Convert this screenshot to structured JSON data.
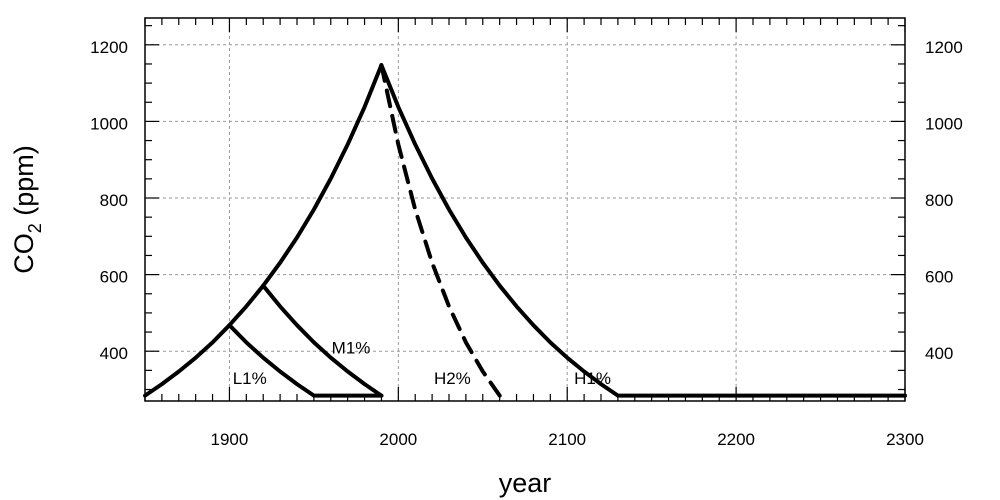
{
  "chart_data": {
    "type": "line",
    "title": "",
    "xlabel": "year",
    "ylabel_main": "CO",
    "ylabel_sub": "2",
    "ylabel_unit": " (ppm)",
    "xlim": [
      1850,
      2300
    ],
    "ylim": [
      270,
      1270
    ],
    "x_ticks": [
      1900,
      2000,
      2100,
      2200,
      2300
    ],
    "x_minor_step": 10,
    "y_ticks": [
      400,
      600,
      800,
      1000,
      1200
    ],
    "y_minor_step": 50,
    "grid": true,
    "mirror_y_axis_right": true,
    "series": [
      {
        "label": "H1%",
        "style": "solid",
        "label_at": [
          2115,
          330
        ],
        "points": [
          [
            1850,
            284
          ],
          [
            1860,
            314
          ],
          [
            1870,
            347
          ],
          [
            1880,
            383
          ],
          [
            1890,
            423
          ],
          [
            1900,
            468
          ],
          [
            1910,
            517
          ],
          [
            1920,
            571
          ],
          [
            1930,
            631
          ],
          [
            1940,
            697
          ],
          [
            1950,
            770
          ],
          [
            1960,
            851
          ],
          [
            1970,
            940
          ],
          [
            1980,
            1038
          ],
          [
            1990,
            1147
          ],
          [
            2000,
            1038
          ],
          [
            2010,
            940
          ],
          [
            2020,
            851
          ],
          [
            2030,
            770
          ],
          [
            2040,
            697
          ],
          [
            2050,
            631
          ],
          [
            2060,
            571
          ],
          [
            2070,
            517
          ],
          [
            2080,
            468
          ],
          [
            2090,
            423
          ],
          [
            2100,
            383
          ],
          [
            2110,
            347
          ],
          [
            2120,
            314
          ],
          [
            2130,
            284
          ],
          [
            2200,
            284
          ],
          [
            2300,
            284
          ]
        ]
      },
      {
        "label": "H2%",
        "style": "dashed",
        "label_at": [
          2032,
          330
        ],
        "points": [
          [
            1990,
            1147
          ],
          [
            2000,
            940
          ],
          [
            2010,
            770
          ],
          [
            2020,
            631
          ],
          [
            2030,
            517
          ],
          [
            2040,
            423
          ],
          [
            2050,
            347
          ],
          [
            2060,
            284
          ]
        ]
      },
      {
        "label": "M1%",
        "style": "solid",
        "label_at": [
          1972,
          410
        ],
        "points": [
          [
            1920,
            571
          ],
          [
            1930,
            517
          ],
          [
            1940,
            468
          ],
          [
            1950,
            423
          ],
          [
            1960,
            383
          ],
          [
            1970,
            347
          ],
          [
            1980,
            314
          ],
          [
            1990,
            284
          ]
        ]
      },
      {
        "label": "L1%",
        "style": "solid",
        "label_at": [
          1912,
          330
        ],
        "points": [
          [
            1900,
            468
          ],
          [
            1910,
            423
          ],
          [
            1920,
            383
          ],
          [
            1930,
            347
          ],
          [
            1940,
            314
          ],
          [
            1950,
            284
          ],
          [
            1990,
            284
          ]
        ]
      }
    ]
  }
}
